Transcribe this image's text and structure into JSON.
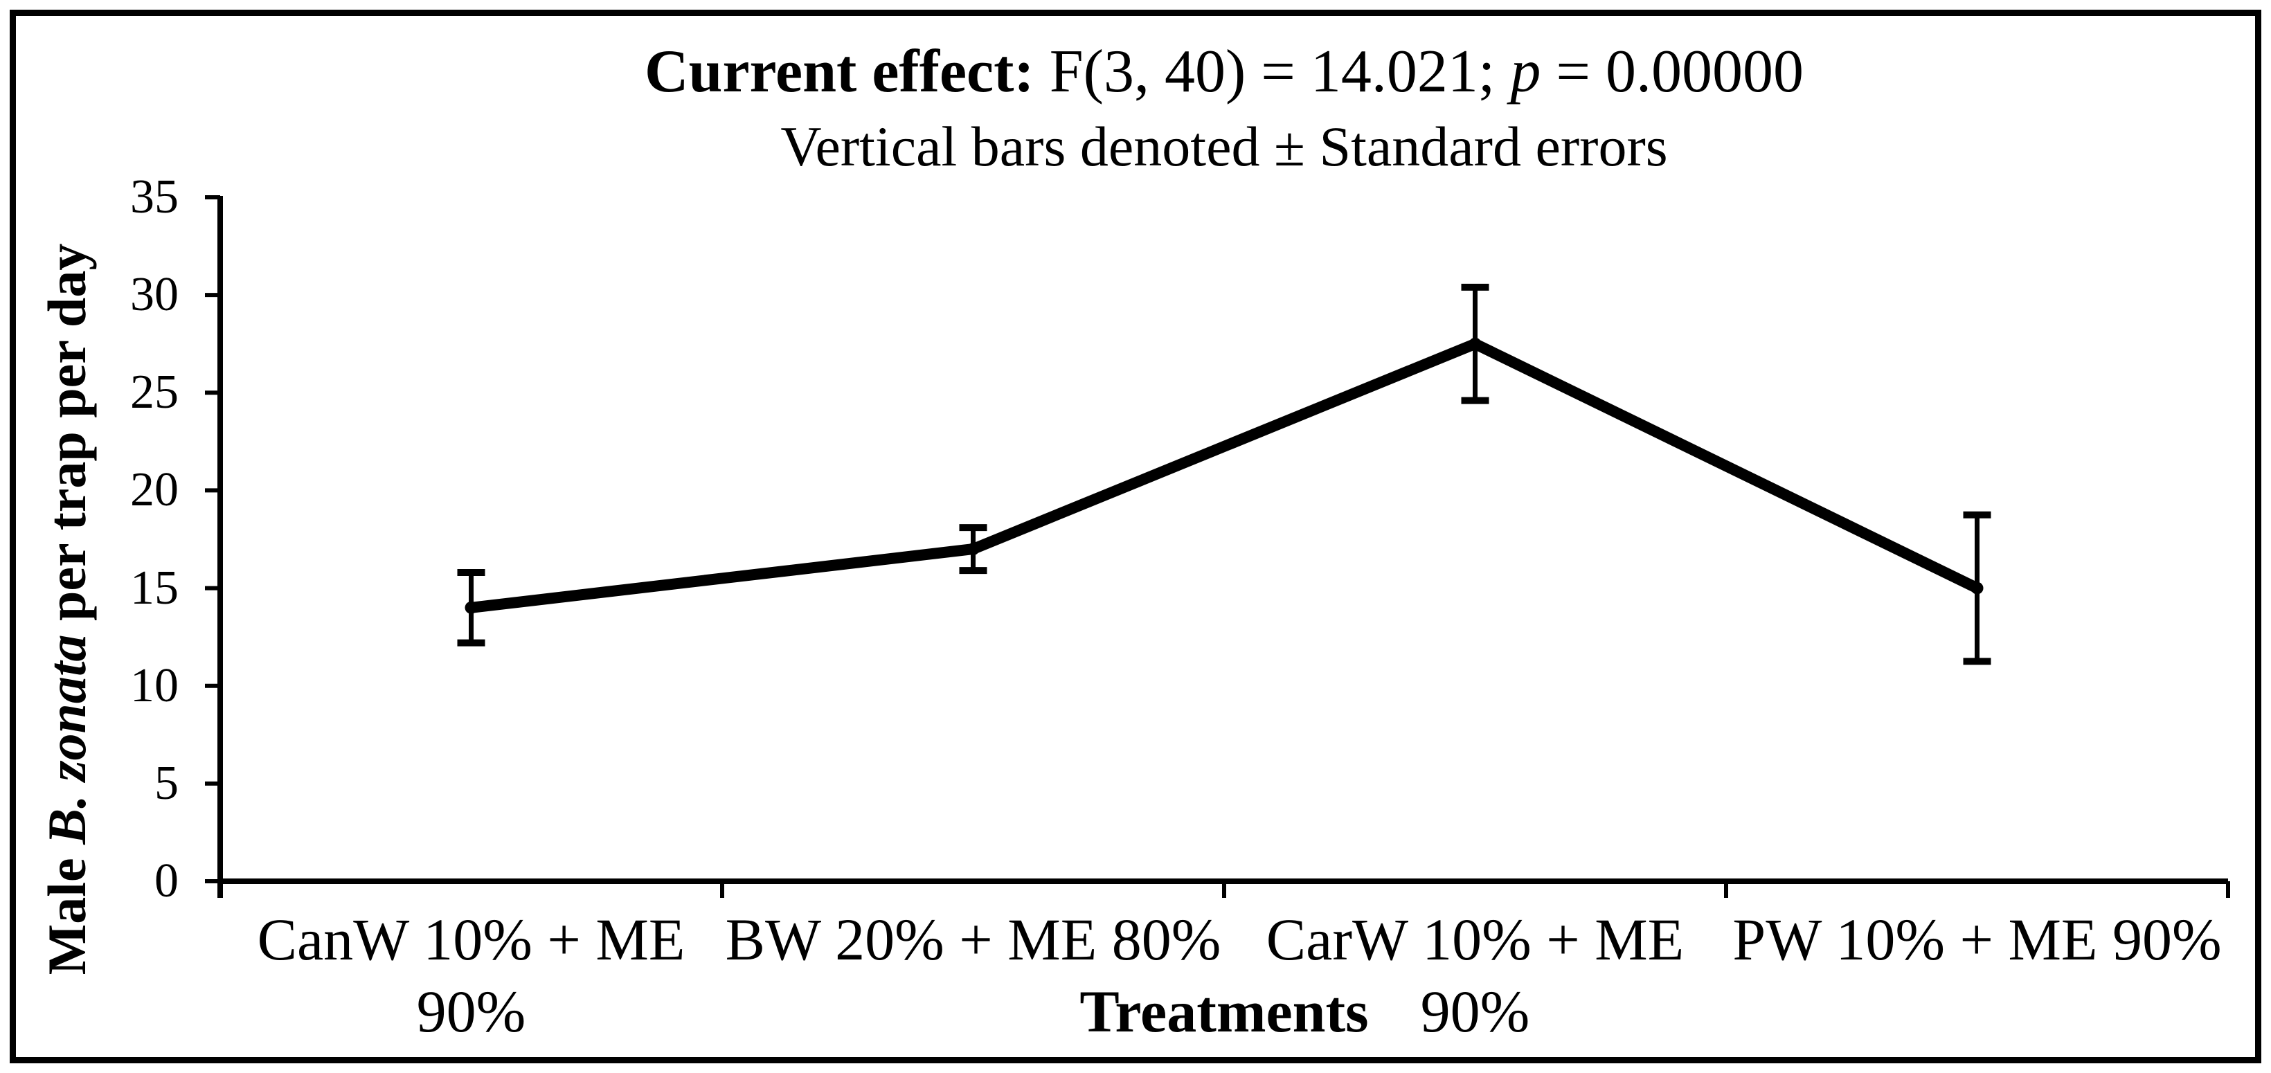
{
  "figure": {
    "title": {
      "bold_prefix": "Current effect:",
      "stats": " F(3, 40) = 14.021; ",
      "p_symbol": "p",
      "p_value": " = 0.00000",
      "subtitle": "Vertical bars denoted ± Standard errors"
    },
    "y_axis_label": {
      "prefix_bold": "Male ",
      "species_italic": "B. zonata",
      "suffix_bold": " per trap per day"
    },
    "x_axis_title": "Treatments"
  },
  "chart_data": {
    "type": "line",
    "title": "Current effect: F(3, 40) = 14.021; p = 0.00000",
    "subtitle": "Vertical bars denoted ± Standard errors",
    "xlabel": "Treatments",
    "ylabel": "Male B. zonata per trap per day",
    "categories": [
      "CanW 10% + ME 90%",
      "BW 20% + ME 80%",
      "CarW 10% + ME 90%",
      "PW 10% + ME 90%"
    ],
    "category_label_lines": [
      [
        "CanW 10% + ME",
        "90%"
      ],
      [
        "BW 20% + ME 80%"
      ],
      [
        "CarW 10% + ME",
        "90%"
      ],
      [
        "PW 10% + ME 90%"
      ]
    ],
    "series": [
      {
        "name": "Male B. zonata per trap per day (mean)",
        "values": [
          14,
          17,
          27.5,
          15
        ],
        "std_errors": [
          1.8,
          1.1,
          2.9,
          3.75
        ]
      }
    ],
    "error_bar_note": "Vertical bars denoted ± Standard errors",
    "yticks": [
      0,
      5,
      10,
      15,
      20,
      25,
      30,
      35
    ],
    "ylim": [
      0,
      35
    ],
    "grid": false,
    "legend": "none",
    "line_color": "#000000",
    "background": "#ffffff"
  }
}
